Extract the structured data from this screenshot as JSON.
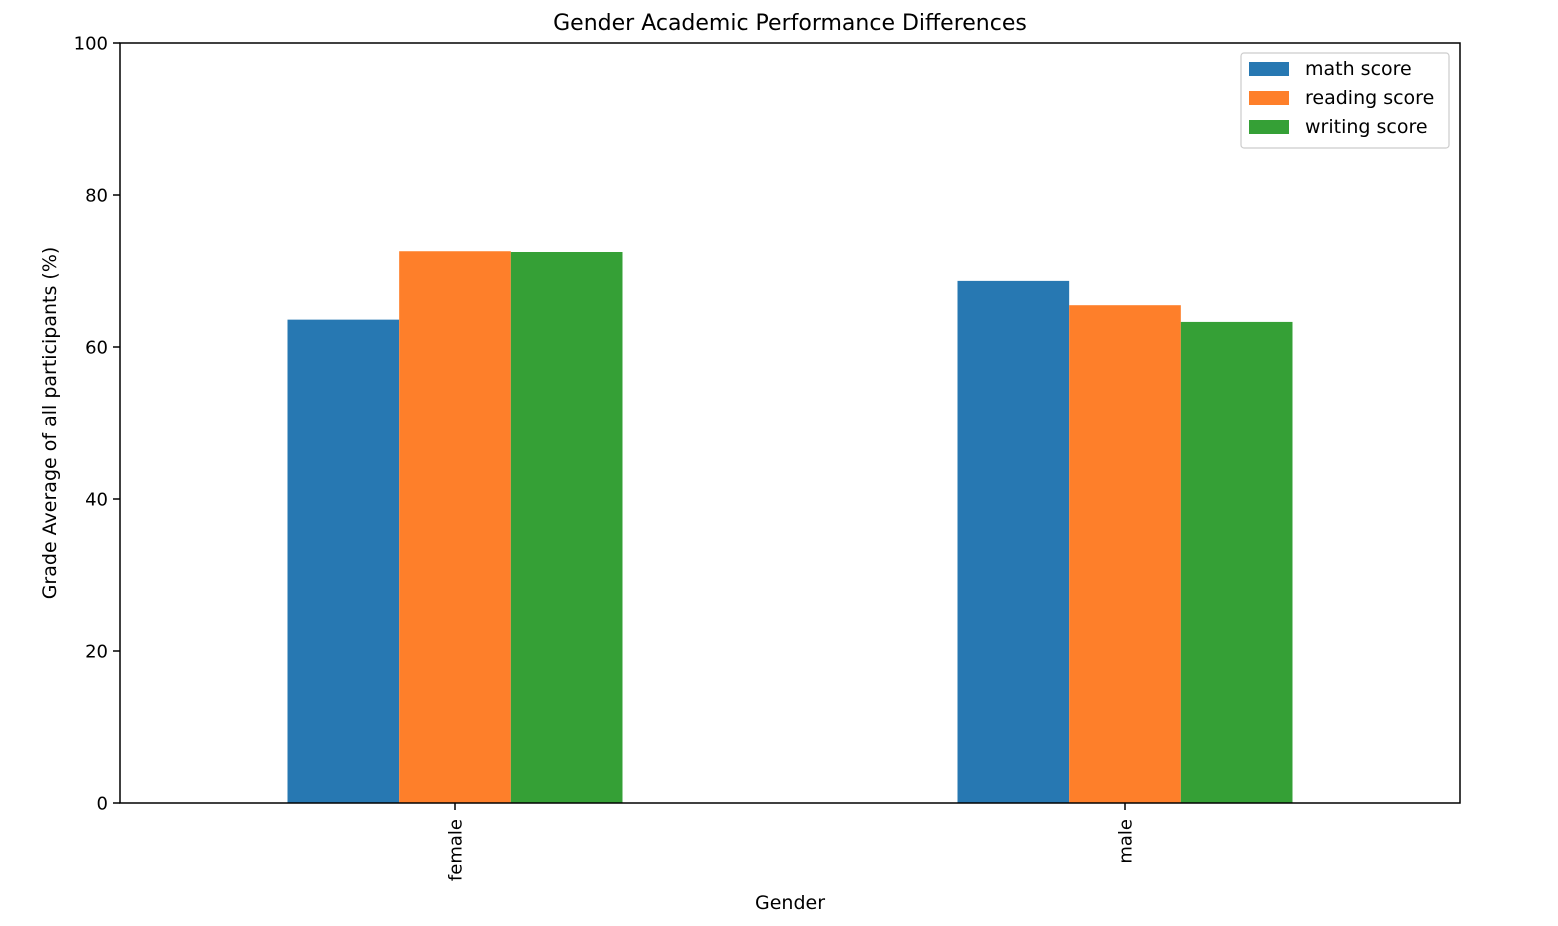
{
  "chart_data": {
    "type": "bar",
    "title": "Gender Academic Performance Differences",
    "xlabel": "Gender",
    "ylabel": "Grade Average of all participants (%)",
    "categories": [
      "female",
      "male"
    ],
    "series": [
      {
        "name": "math score",
        "values": [
          63.6,
          68.7
        ],
        "color": "#2778b2"
      },
      {
        "name": "reading score",
        "values": [
          72.6,
          65.5
        ],
        "color": "#fe7f2a"
      },
      {
        "name": "writing score",
        "values": [
          72.5,
          63.3
        ],
        "color": "#35a036"
      }
    ],
    "ylim": [
      0,
      100
    ],
    "yticks": [
      0,
      20,
      40,
      60,
      80,
      100
    ],
    "grid": false,
    "legend_position": "upper right"
  }
}
